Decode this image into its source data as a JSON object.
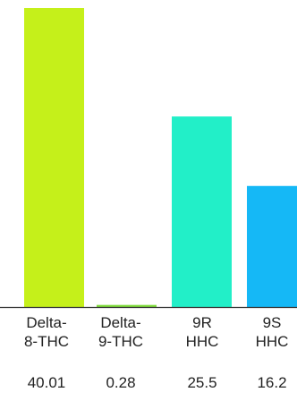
{
  "chart_data": {
    "type": "bar",
    "categories": [
      [
        "Delta-",
        "8-THC"
      ],
      [
        "Delta-",
        "9-THC"
      ],
      [
        "9R",
        "HHC"
      ],
      [
        "9S",
        "HHC"
      ]
    ],
    "values": [
      40.01,
      0.28,
      25.5,
      16.2
    ],
    "value_labels": [
      "40.01",
      "0.28",
      "25.5",
      "16.2"
    ],
    "bar_colors": [
      "#c5f01a",
      "#7fdc3b",
      "#22efc8",
      "#15b8f6"
    ],
    "axis_color": "#333333",
    "title": "",
    "xlabel": "",
    "ylabel": "",
    "ylim": [
      0,
      40.01
    ],
    "grid": false,
    "legend": "none"
  }
}
